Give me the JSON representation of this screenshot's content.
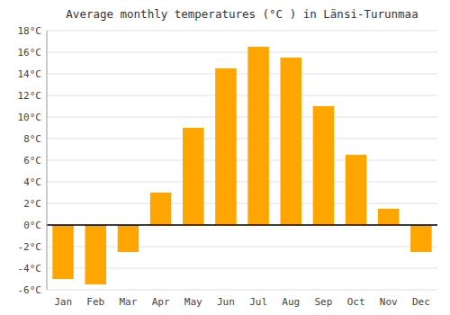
{
  "chart_data": {
    "type": "bar",
    "title": "Average monthly temperatures (°C ) in Länsi-Turunmaa",
    "categories": [
      "Jan",
      "Feb",
      "Mar",
      "Apr",
      "May",
      "Jun",
      "Jul",
      "Aug",
      "Sep",
      "Oct",
      "Nov",
      "Dec"
    ],
    "values": [
      -5.0,
      -5.5,
      -2.5,
      3.0,
      9.0,
      14.5,
      16.5,
      15.5,
      11.0,
      6.5,
      1.5,
      -2.5
    ],
    "color": "#FFA500",
    "ylim": [
      -6,
      18
    ],
    "yticks": [
      {
        "value": -6,
        "label": "-6°C"
      },
      {
        "value": -4,
        "label": "-4°C"
      },
      {
        "value": -2,
        "label": "-2°C"
      },
      {
        "value": 0,
        "label": "0°C"
      },
      {
        "value": 2,
        "label": "2°C"
      },
      {
        "value": 4,
        "label": "4°C"
      },
      {
        "value": 6,
        "label": "6°C"
      },
      {
        "value": 8,
        "label": "8°C"
      },
      {
        "value": 10,
        "label": "10°C"
      },
      {
        "value": 12,
        "label": "12°C"
      },
      {
        "value": 14,
        "label": "14°C"
      },
      {
        "value": 16,
        "label": "16°C"
      },
      {
        "value": 18,
        "label": "18°C"
      }
    ],
    "grid": true
  }
}
